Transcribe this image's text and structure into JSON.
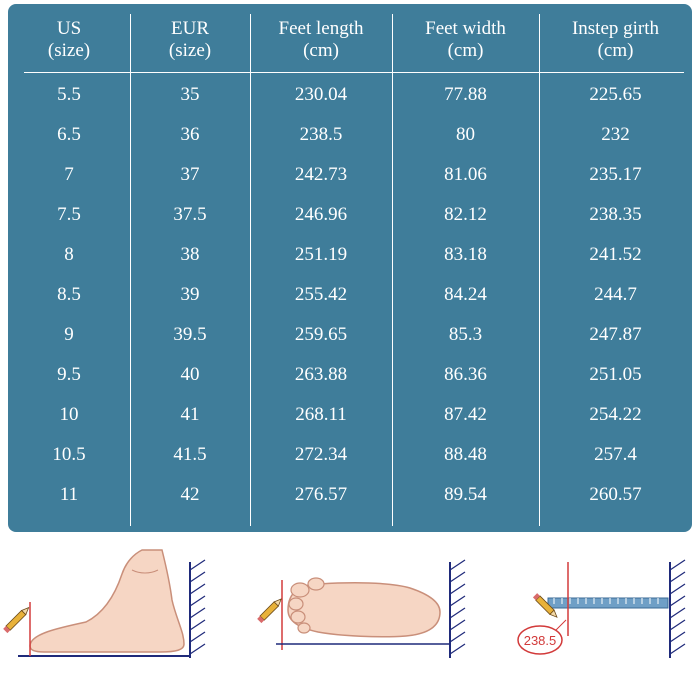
{
  "table": {
    "headers": [
      {
        "line1": "US",
        "line2": "(size)"
      },
      {
        "line1": "EUR",
        "line2": "(size)"
      },
      {
        "line1": "Feet length",
        "line2": "(cm)"
      },
      {
        "line1": "Feet width",
        "line2": "(cm)"
      },
      {
        "line1": "Instep girth",
        "line2": "(cm)"
      }
    ],
    "rows": [
      [
        "5.5",
        "35",
        "230.04",
        "77.88",
        "225.65"
      ],
      [
        "6.5",
        "36",
        "238.5",
        "80",
        "232"
      ],
      [
        "7",
        "37",
        "242.73",
        "81.06",
        "235.17"
      ],
      [
        "7.5",
        "37.5",
        "246.96",
        "82.12",
        "238.35"
      ],
      [
        "8",
        "38",
        "251.19",
        "83.18",
        "241.52"
      ],
      [
        "8.5",
        "39",
        "255.42",
        "84.24",
        "244.7"
      ],
      [
        "9",
        "39.5",
        "259.65",
        "85.3",
        "247.87"
      ],
      [
        "9.5",
        "40",
        "263.88",
        "86.36",
        "251.05"
      ],
      [
        "10",
        "41",
        "268.11",
        "87.42",
        "254.22"
      ],
      [
        "10.5",
        "41.5",
        "272.34",
        "88.48",
        "257.4"
      ],
      [
        "11",
        "42",
        "276.57",
        "89.54",
        "260.57"
      ]
    ]
  },
  "illustrations": {
    "measure_readout": "238.5"
  },
  "colors": {
    "panel": "#3f7d9a",
    "text": "#ffffff",
    "skin": "#f6d6c4",
    "marker": "#d23a3a",
    "wall": "#1f2a7a"
  }
}
